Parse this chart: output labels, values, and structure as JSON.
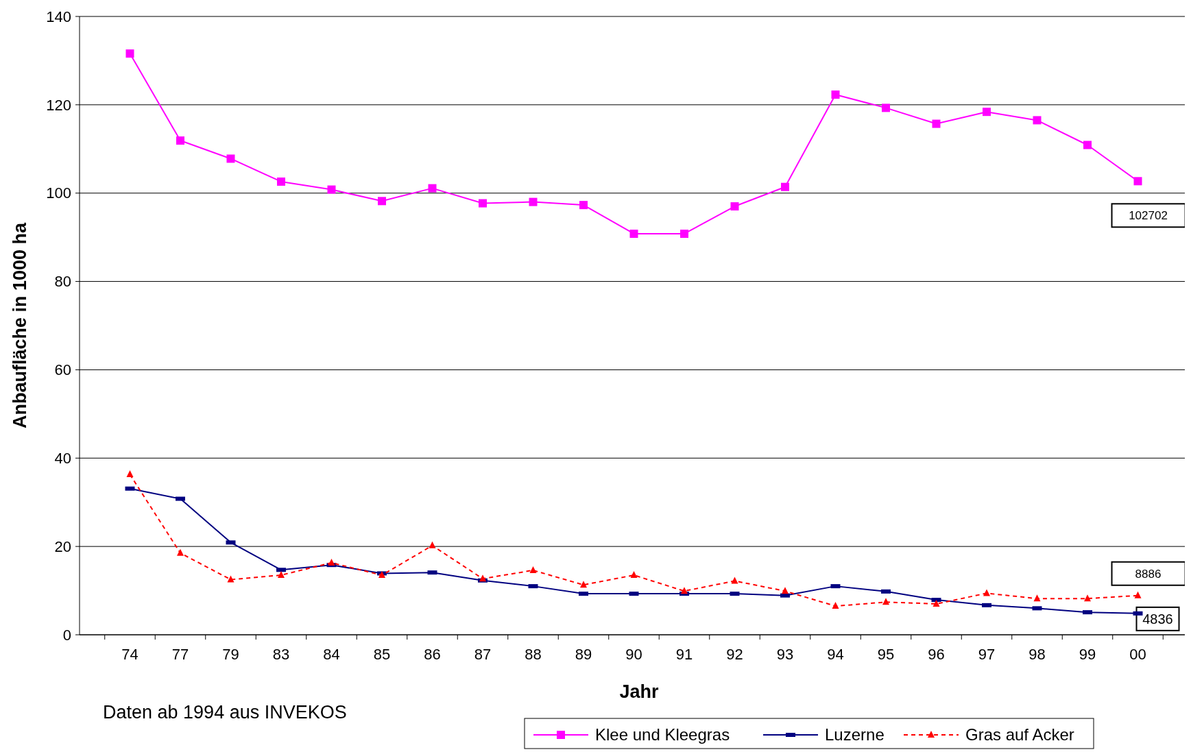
{
  "chart_data": {
    "type": "line",
    "xlabel": "Jahr",
    "ylabel": "Anbaufläche in 1000 ha",
    "categories": [
      "74",
      "77",
      "79",
      "83",
      "84",
      "85",
      "86",
      "87",
      "88",
      "89",
      "90",
      "91",
      "92",
      "93",
      "94",
      "95",
      "96",
      "97",
      "98",
      "99",
      "00"
    ],
    "series": [
      {
        "name": "Klee und Kleegras",
        "color": "#ff00ff",
        "marker": "square",
        "line_style": "solid",
        "values": [
          131.6,
          111.9,
          107.8,
          102.6,
          100.8,
          98.2,
          101.1,
          97.7,
          98.0,
          97.3,
          90.8,
          90.8,
          97.0,
          101.4,
          122.3,
          119.3,
          115.7,
          118.4,
          116.5,
          110.9,
          102.702
        ]
      },
      {
        "name": "Luzerne",
        "color": "#000080",
        "marker": "square",
        "line_style": "solid",
        "values": [
          33.1,
          30.8,
          20.9,
          14.7,
          15.8,
          13.9,
          14.1,
          12.3,
          11.0,
          9.3,
          9.3,
          9.3,
          9.3,
          8.9,
          11.0,
          9.8,
          7.9,
          6.7,
          6.0,
          5.1,
          4.836
        ]
      },
      {
        "name": "Gras auf Acker",
        "color": "#ff0000",
        "marker": "triangle",
        "line_style": "dashed",
        "values": [
          36.3,
          18.5,
          12.5,
          13.5,
          16.3,
          13.5,
          20.2,
          12.7,
          14.6,
          11.3,
          13.5,
          9.9,
          12.2,
          9.9,
          6.5,
          7.4,
          7.0,
          9.4,
          8.2,
          8.2,
          8.886
        ]
      }
    ],
    "ylim": [
      0,
      140
    ],
    "yticks": [
      0,
      20,
      40,
      60,
      80,
      100,
      120,
      140
    ],
    "grid": "y",
    "legend": "bottom",
    "annotations": [
      "Daten ab 1994 aus INVEKOS",
      {
        "text": "102702",
        "x": "00",
        "y": 102.702
      },
      {
        "text": "8886",
        "x": "00",
        "y": 8.886
      },
      {
        "text": "4836",
        "x": "00",
        "y": 4.836
      }
    ]
  }
}
